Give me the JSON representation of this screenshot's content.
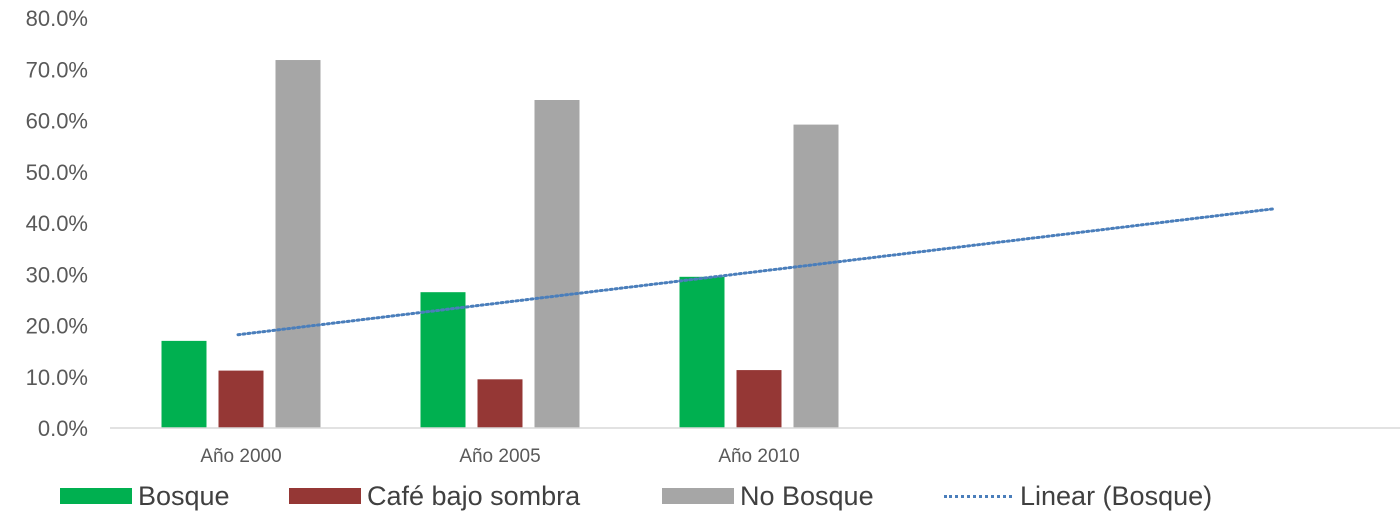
{
  "chart_data": {
    "type": "bar",
    "categories": [
      "Año 2000",
      "Año 2005",
      "Año 2010"
    ],
    "series": [
      {
        "name": "Bosque",
        "values": [
          17.0,
          26.5,
          29.5
        ],
        "color": "#00b050"
      },
      {
        "name": "Café bajo sombra",
        "values": [
          11.2,
          9.5,
          11.3
        ],
        "color": "#953735"
      },
      {
        "name": "No Bosque",
        "values": [
          71.8,
          64.0,
          59.2
        ],
        "color": "#a6a6a6"
      }
    ],
    "trendline": {
      "name": "Linear (Bosque)",
      "type": "linear",
      "of_series": "Bosque",
      "start_value": 18.2,
      "end_value": 42.8,
      "color": "#4a7ebb",
      "style": "dotted"
    },
    "y_ticks": [
      "0.0%",
      "10.0%",
      "20.0%",
      "30.0%",
      "40.0%",
      "50.0%",
      "60.0%",
      "70.0%",
      "80.0%"
    ],
    "ylim": [
      0,
      80
    ],
    "y_format": "percent",
    "grid": false,
    "legend_position": "bottom",
    "title": "",
    "xlabel": "",
    "ylabel": ""
  }
}
